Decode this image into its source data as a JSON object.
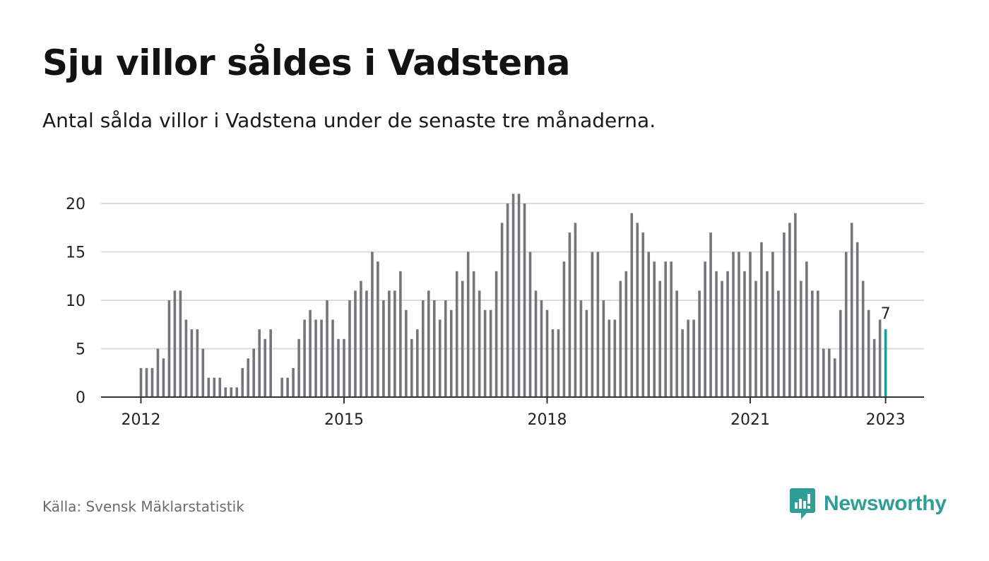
{
  "header": {
    "title": "Sju villor såldes i Vadstena",
    "subtitle": "Antal sålda villor i Vadstena under de senaste tre månaderna."
  },
  "footer": {
    "source": "Källa: Svensk Mäklarstatistik",
    "brand": "Newsworthy"
  },
  "colors": {
    "bar": "#76767a",
    "highlight": "#1f9c92",
    "grid": "#dcdcdc",
    "axis": "#333333",
    "brand": "#2e9e96"
  },
  "icons": {
    "brand_logo": "bar-chart-speech-bubble-icon"
  },
  "chart_data": {
    "type": "bar",
    "title": "",
    "xlabel": "",
    "ylabel": "",
    "ylim": [
      0,
      21
    ],
    "yticks": [
      0,
      5,
      10,
      15,
      20
    ],
    "x_tick_labels": [
      "2012",
      "2015",
      "2018",
      "2021",
      "2023"
    ],
    "grid": true,
    "highlight_label": "7",
    "series": [
      {
        "values": [
          3,
          3,
          3,
          5,
          4,
          10,
          11,
          11,
          8,
          7,
          7,
          5,
          2,
          2,
          2,
          1,
          1,
          1,
          3,
          4,
          5,
          7,
          6,
          7,
          0,
          2,
          2,
          3,
          6,
          8,
          9,
          8,
          8,
          10,
          8,
          6,
          6,
          10,
          11,
          12,
          11,
          15,
          14,
          10,
          11,
          11,
          13,
          9,
          6,
          7,
          10,
          11,
          10,
          8,
          10,
          9,
          13,
          12,
          15,
          13,
          11,
          9,
          9,
          13,
          18,
          20,
          21,
          21,
          20,
          15,
          11,
          10,
          9,
          7,
          7,
          14,
          17,
          18,
          10,
          9,
          15,
          15,
          10,
          8,
          8,
          12,
          13,
          19,
          18,
          17,
          15,
          14,
          12,
          14,
          14,
          11,
          7,
          8,
          8,
          11,
          14,
          17,
          13,
          12,
          13,
          15,
          15,
          13,
          15,
          12,
          16,
          13,
          15,
          11,
          17,
          18,
          19,
          12,
          14,
          11,
          11,
          5,
          5,
          4,
          9,
          15,
          18,
          16,
          12,
          9,
          6,
          8,
          7
        ]
      }
    ]
  }
}
